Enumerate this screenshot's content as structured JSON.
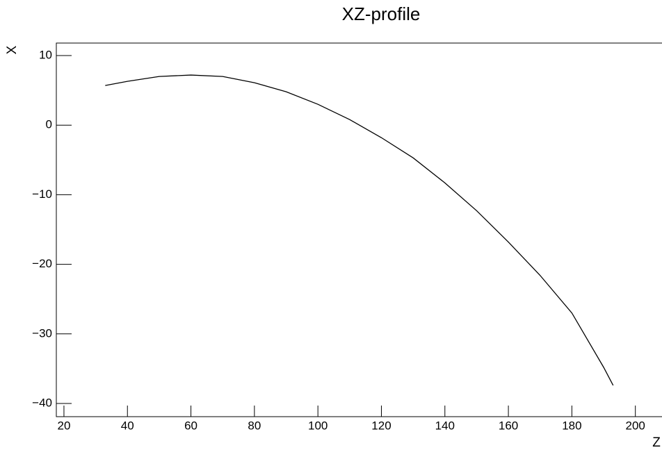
{
  "chart_data": {
    "type": "line",
    "title": "XZ-profile",
    "x_label": "Z",
    "y_label": "X",
    "series": [
      {
        "name": "XZ-profile",
        "color": "#000000",
        "x": [
          33,
          40,
          50,
          60,
          70,
          80,
          90,
          100,
          110,
          120,
          130,
          140,
          150,
          160,
          170,
          180,
          190,
          193
        ],
        "values": [
          5.7,
          6.3,
          7.0,
          7.2,
          7.0,
          6.1,
          4.8,
          3.0,
          0.8,
          -1.8,
          -4.7,
          -8.3,
          -12.3,
          -16.8,
          -21.6,
          -27.0,
          -34.8,
          -37.4
        ]
      }
    ],
    "xlim": [
      17.6,
      210.8
    ],
    "xticks": [
      20,
      40,
      60,
      80,
      100,
      120,
      140,
      160,
      180,
      200
    ],
    "ylim": [
      -41.9,
      11.8
    ],
    "yticks": [
      {
        "value": -40,
        "label": "−40"
      },
      {
        "value": -30,
        "label": "−30"
      },
      {
        "value": -20,
        "label": "−20"
      },
      {
        "value": -10,
        "label": "−10"
      },
      0,
      10
    ]
  }
}
